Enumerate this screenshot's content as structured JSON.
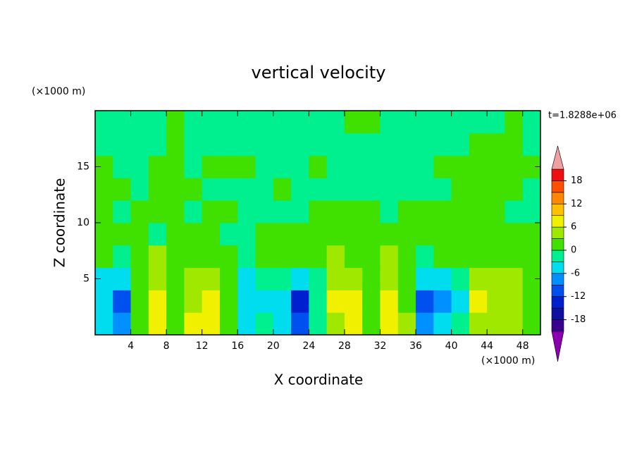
{
  "chart_data": {
    "type": "contour",
    "title": "vertical velocity",
    "x_label": "X coordinate",
    "y_label": "Z coordinate",
    "x_unit": "(×1000 m)",
    "y_unit": "(×1000 m)",
    "time_label": "t=1.8288e+06",
    "xlim": [
      0,
      50
    ],
    "ylim": [
      0,
      20
    ],
    "xticks": [
      4,
      8,
      12,
      16,
      20,
      24,
      28,
      32,
      36,
      40,
      44,
      48
    ],
    "yticks": [
      5,
      10,
      15
    ],
    "x": [
      1,
      3,
      5,
      7,
      9,
      11,
      13,
      15,
      17,
      19,
      21,
      23,
      25,
      27,
      29,
      31,
      33,
      35,
      37,
      39,
      41,
      43,
      45,
      47,
      49
    ],
    "y": [
      1,
      3,
      5,
      7,
      9,
      11,
      13,
      15,
      17,
      19
    ],
    "z": [
      [
        -4,
        -8,
        2,
        7,
        1,
        7,
        8,
        2,
        -5,
        -2,
        -4,
        -10,
        -2,
        5,
        7,
        1,
        7,
        3,
        -7,
        -5,
        -2,
        5,
        4,
        5,
        1
      ],
      [
        -5,
        -10,
        1,
        8,
        1,
        4,
        7,
        2,
        -6,
        -5,
        -4,
        -13,
        -3,
        6,
        8,
        1,
        8,
        2,
        -10,
        -8,
        -4,
        6,
        5,
        4,
        1
      ],
      [
        -4,
        -5,
        2,
        5,
        2,
        3,
        4,
        1,
        -4,
        -2,
        -3,
        -5,
        -1,
        4,
        4,
        1,
        4,
        1,
        -4,
        -4,
        -2,
        4,
        3,
        3,
        1
      ],
      [
        1,
        -2,
        2,
        3,
        1,
        2,
        2,
        1,
        -1,
        1,
        2,
        1,
        2,
        3,
        2,
        1,
        3,
        2,
        -1,
        1,
        2,
        2,
        2,
        2,
        1
      ],
      [
        1,
        1,
        1,
        -1,
        1,
        1,
        2,
        -1,
        -1,
        1,
        1,
        1,
        1,
        1,
        1,
        1,
        1,
        1,
        1,
        1,
        1,
        1,
        1,
        1,
        1
      ],
      [
        1,
        -1,
        1,
        1,
        1,
        -1,
        1,
        1,
        -1,
        -1,
        -1,
        -1,
        1,
        1,
        1,
        1,
        -1,
        1,
        1,
        1,
        1,
        1,
        1,
        -1,
        -1
      ],
      [
        1,
        1,
        -1,
        1,
        1,
        1,
        -1,
        -1,
        -1,
        -1,
        1,
        -1,
        -1,
        -1,
        -1,
        -1,
        -1,
        -1,
        -1,
        -1,
        1,
        1,
        1,
        1,
        -1
      ],
      [
        1,
        -1,
        -1,
        1,
        1,
        -1,
        1,
        1,
        1,
        -1,
        -1,
        -1,
        1,
        -1,
        -1,
        -1,
        -1,
        -1,
        -1,
        1,
        1,
        1,
        1,
        1,
        1
      ],
      [
        -1,
        -1,
        -1,
        -1,
        1,
        -1,
        -1,
        -1,
        -1,
        -1,
        -1,
        -1,
        -1,
        -1,
        -1,
        -1,
        -1,
        -1,
        -1,
        -1,
        -1,
        1,
        1,
        1,
        -1
      ],
      [
        -1,
        -1,
        -1,
        -1,
        1,
        -1,
        -1,
        -1,
        -1,
        -1,
        -1,
        -1,
        -1,
        -1,
        1,
        1,
        -1,
        -1,
        -1,
        -1,
        -1,
        -1,
        -1,
        1,
        -1
      ]
    ],
    "levels": [
      -21,
      -18,
      -15,
      -12,
      -9,
      -6,
      -3,
      0,
      3,
      6,
      9,
      12,
      15,
      18,
      21
    ],
    "colors": [
      "#8a00b0",
      "#3b0090",
      "#1010a0",
      "#0020d0",
      "#0050f0",
      "#0090ff",
      "#00ddee",
      "#00f090",
      "#40e000",
      "#a0e800",
      "#f0f000",
      "#ffc000",
      "#ff8800",
      "#ff5000",
      "#ee1010",
      "#f0a0a0"
    ],
    "cticks": [
      -18,
      -12,
      -6,
      0,
      6,
      12,
      18
    ]
  }
}
